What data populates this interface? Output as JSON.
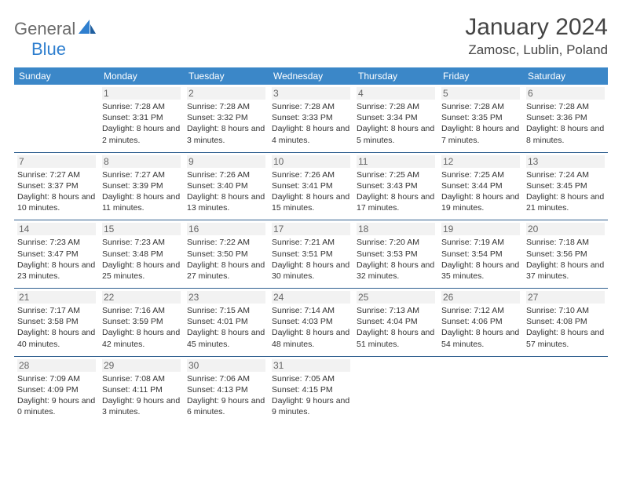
{
  "logo": {
    "general": "General",
    "blue": "Blue"
  },
  "title": "January 2024",
  "location": "Zamosc, Lublin, Poland",
  "weekdays": [
    "Sunday",
    "Monday",
    "Tuesday",
    "Wednesday",
    "Thursday",
    "Friday",
    "Saturday"
  ],
  "colors": {
    "header_bg": "#3b87c8",
    "rule": "#2f5f8f",
    "shaded": "#f2f2f2",
    "logo_blue": "#2f7fcf",
    "logo_gray": "#6b6b6b"
  },
  "weeks": [
    [
      {
        "n": "",
        "sr": "",
        "ss": "",
        "dl": ""
      },
      {
        "n": "1",
        "sr": "Sunrise: 7:28 AM",
        "ss": "Sunset: 3:31 PM",
        "dl": "Daylight: 8 hours and 2 minutes."
      },
      {
        "n": "2",
        "sr": "Sunrise: 7:28 AM",
        "ss": "Sunset: 3:32 PM",
        "dl": "Daylight: 8 hours and 3 minutes."
      },
      {
        "n": "3",
        "sr": "Sunrise: 7:28 AM",
        "ss": "Sunset: 3:33 PM",
        "dl": "Daylight: 8 hours and 4 minutes."
      },
      {
        "n": "4",
        "sr": "Sunrise: 7:28 AM",
        "ss": "Sunset: 3:34 PM",
        "dl": "Daylight: 8 hours and 5 minutes."
      },
      {
        "n": "5",
        "sr": "Sunrise: 7:28 AM",
        "ss": "Sunset: 3:35 PM",
        "dl": "Daylight: 8 hours and 7 minutes."
      },
      {
        "n": "6",
        "sr": "Sunrise: 7:28 AM",
        "ss": "Sunset: 3:36 PM",
        "dl": "Daylight: 8 hours and 8 minutes."
      }
    ],
    [
      {
        "n": "7",
        "sr": "Sunrise: 7:27 AM",
        "ss": "Sunset: 3:37 PM",
        "dl": "Daylight: 8 hours and 10 minutes."
      },
      {
        "n": "8",
        "sr": "Sunrise: 7:27 AM",
        "ss": "Sunset: 3:39 PM",
        "dl": "Daylight: 8 hours and 11 minutes."
      },
      {
        "n": "9",
        "sr": "Sunrise: 7:26 AM",
        "ss": "Sunset: 3:40 PM",
        "dl": "Daylight: 8 hours and 13 minutes."
      },
      {
        "n": "10",
        "sr": "Sunrise: 7:26 AM",
        "ss": "Sunset: 3:41 PM",
        "dl": "Daylight: 8 hours and 15 minutes."
      },
      {
        "n": "11",
        "sr": "Sunrise: 7:25 AM",
        "ss": "Sunset: 3:43 PM",
        "dl": "Daylight: 8 hours and 17 minutes."
      },
      {
        "n": "12",
        "sr": "Sunrise: 7:25 AM",
        "ss": "Sunset: 3:44 PM",
        "dl": "Daylight: 8 hours and 19 minutes."
      },
      {
        "n": "13",
        "sr": "Sunrise: 7:24 AM",
        "ss": "Sunset: 3:45 PM",
        "dl": "Daylight: 8 hours and 21 minutes."
      }
    ],
    [
      {
        "n": "14",
        "sr": "Sunrise: 7:23 AM",
        "ss": "Sunset: 3:47 PM",
        "dl": "Daylight: 8 hours and 23 minutes."
      },
      {
        "n": "15",
        "sr": "Sunrise: 7:23 AM",
        "ss": "Sunset: 3:48 PM",
        "dl": "Daylight: 8 hours and 25 minutes."
      },
      {
        "n": "16",
        "sr": "Sunrise: 7:22 AM",
        "ss": "Sunset: 3:50 PM",
        "dl": "Daylight: 8 hours and 27 minutes."
      },
      {
        "n": "17",
        "sr": "Sunrise: 7:21 AM",
        "ss": "Sunset: 3:51 PM",
        "dl": "Daylight: 8 hours and 30 minutes."
      },
      {
        "n": "18",
        "sr": "Sunrise: 7:20 AM",
        "ss": "Sunset: 3:53 PM",
        "dl": "Daylight: 8 hours and 32 minutes."
      },
      {
        "n": "19",
        "sr": "Sunrise: 7:19 AM",
        "ss": "Sunset: 3:54 PM",
        "dl": "Daylight: 8 hours and 35 minutes."
      },
      {
        "n": "20",
        "sr": "Sunrise: 7:18 AM",
        "ss": "Sunset: 3:56 PM",
        "dl": "Daylight: 8 hours and 37 minutes."
      }
    ],
    [
      {
        "n": "21",
        "sr": "Sunrise: 7:17 AM",
        "ss": "Sunset: 3:58 PM",
        "dl": "Daylight: 8 hours and 40 minutes."
      },
      {
        "n": "22",
        "sr": "Sunrise: 7:16 AM",
        "ss": "Sunset: 3:59 PM",
        "dl": "Daylight: 8 hours and 42 minutes."
      },
      {
        "n": "23",
        "sr": "Sunrise: 7:15 AM",
        "ss": "Sunset: 4:01 PM",
        "dl": "Daylight: 8 hours and 45 minutes."
      },
      {
        "n": "24",
        "sr": "Sunrise: 7:14 AM",
        "ss": "Sunset: 4:03 PM",
        "dl": "Daylight: 8 hours and 48 minutes."
      },
      {
        "n": "25",
        "sr": "Sunrise: 7:13 AM",
        "ss": "Sunset: 4:04 PM",
        "dl": "Daylight: 8 hours and 51 minutes."
      },
      {
        "n": "26",
        "sr": "Sunrise: 7:12 AM",
        "ss": "Sunset: 4:06 PM",
        "dl": "Daylight: 8 hours and 54 minutes."
      },
      {
        "n": "27",
        "sr": "Sunrise: 7:10 AM",
        "ss": "Sunset: 4:08 PM",
        "dl": "Daylight: 8 hours and 57 minutes."
      }
    ],
    [
      {
        "n": "28",
        "sr": "Sunrise: 7:09 AM",
        "ss": "Sunset: 4:09 PM",
        "dl": "Daylight: 9 hours and 0 minutes."
      },
      {
        "n": "29",
        "sr": "Sunrise: 7:08 AM",
        "ss": "Sunset: 4:11 PM",
        "dl": "Daylight: 9 hours and 3 minutes."
      },
      {
        "n": "30",
        "sr": "Sunrise: 7:06 AM",
        "ss": "Sunset: 4:13 PM",
        "dl": "Daylight: 9 hours and 6 minutes."
      },
      {
        "n": "31",
        "sr": "Sunrise: 7:05 AM",
        "ss": "Sunset: 4:15 PM",
        "dl": "Daylight: 9 hours and 9 minutes."
      },
      {
        "n": "",
        "sr": "",
        "ss": "",
        "dl": ""
      },
      {
        "n": "",
        "sr": "",
        "ss": "",
        "dl": ""
      },
      {
        "n": "",
        "sr": "",
        "ss": "",
        "dl": ""
      }
    ]
  ]
}
